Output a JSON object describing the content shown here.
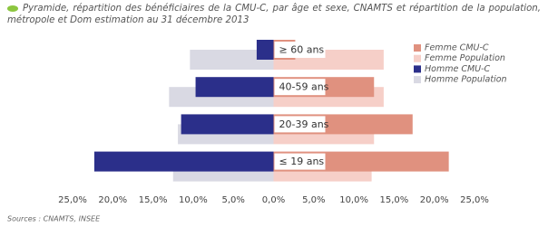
{
  "chart_data": {
    "type": "bar",
    "orientation": "horizontal",
    "title": "Pyramide, répartition des bénéficiaires de la CMU-C, par âge et sexe, CNAMTS et répartition de la population, métropole et Dom estimation au 31 décembre 2013",
    "source": "Sources : CNAMTS, INSEE",
    "categories": [
      "≥ 60 ans",
      "40-59 ans",
      "20-39 ans",
      "≤ 19 ans"
    ],
    "series": [
      {
        "name": "Femme CMU-C",
        "color": "#e0917f",
        "values": [
          2.7,
          12.5,
          17.3,
          21.8
        ]
      },
      {
        "name": "Femme Population",
        "color": "#f6cfc8",
        "values": [
          13.7,
          13.7,
          12.5,
          12.2
        ]
      },
      {
        "name": "Homme CMU-C",
        "color": "#2b2f8a",
        "values": [
          -2.1,
          -9.7,
          -11.5,
          -22.3
        ]
      },
      {
        "name": "Homme Population",
        "color": "#d9d9e3",
        "values": [
          -10.4,
          -13.0,
          -11.9,
          -12.5
        ]
      }
    ],
    "xlim": [
      -25,
      25
    ],
    "xticks": [
      {
        "value": -25,
        "label": "25,0%"
      },
      {
        "value": -20,
        "label": "20,0%"
      },
      {
        "value": -15,
        "label": "15,0%"
      },
      {
        "value": -10,
        "label": "10,0%"
      },
      {
        "value": -5,
        "label": "5,0%"
      },
      {
        "value": 0,
        "label": "0,0%"
      },
      {
        "value": 5,
        "label": "5,0%"
      },
      {
        "value": 10,
        "label": "10,0%"
      },
      {
        "value": 15,
        "label": "15,0%"
      },
      {
        "value": 20,
        "label": "20,0%"
      },
      {
        "value": 25,
        "label": "25,0%"
      }
    ],
    "grid": false,
    "legend": "right"
  }
}
